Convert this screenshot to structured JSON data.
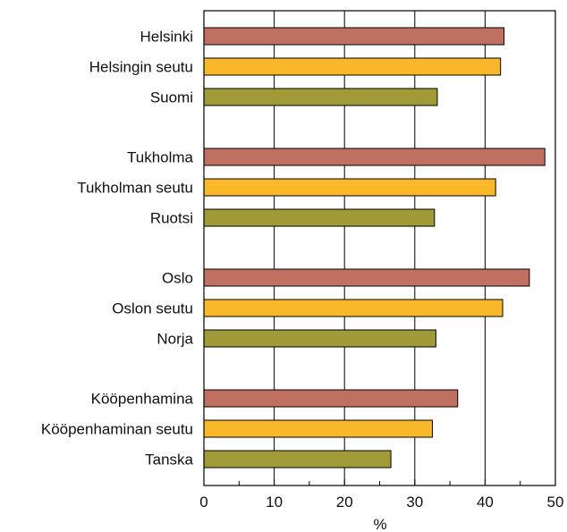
{
  "chart_data": {
    "type": "bar",
    "orientation": "horizontal",
    "xlabel": "%",
    "xlim": [
      0,
      50
    ],
    "xticks": [
      0,
      10,
      20,
      30,
      40,
      50
    ],
    "grid": "vertical",
    "colors": [
      "#c07060",
      "#f8b82a",
      "#a09a38"
    ],
    "groups": [
      {
        "bars": [
          {
            "label": "Helsinki",
            "value": 42.7
          },
          {
            "label": "Helsingin seutu",
            "value": 42.2
          },
          {
            "label": "Suomi",
            "value": 33.2
          }
        ]
      },
      {
        "bars": [
          {
            "label": "Tukholma",
            "value": 48.5
          },
          {
            "label": "Tukholman seutu",
            "value": 41.5
          },
          {
            "label": "Ruotsi",
            "value": 32.8
          }
        ]
      },
      {
        "bars": [
          {
            "label": "Oslo",
            "value": 46.3
          },
          {
            "label": "Oslon seutu",
            "value": 42.5
          },
          {
            "label": "Norja",
            "value": 33.0
          }
        ]
      },
      {
        "bars": [
          {
            "label": "Kööpenhamina",
            "value": 36.1
          },
          {
            "label": "Kööpenhaminan seutu",
            "value": 32.5
          },
          {
            "label": "Tanska",
            "value": 26.6
          }
        ]
      }
    ]
  }
}
